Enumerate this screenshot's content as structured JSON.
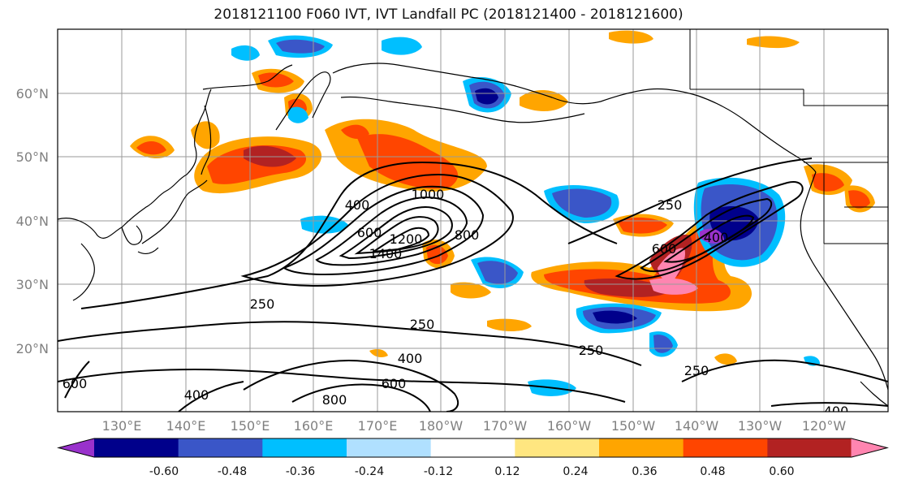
{
  "title": "2018121100 F060 IVT, IVT Landfall PC (2018121400 - 2018121600)",
  "lat_labels": [
    "60°N",
    "50°N",
    "40°N",
    "30°N",
    "20°N"
  ],
  "lon_labels": [
    "130°E",
    "140°E",
    "150°E",
    "160°E",
    "170°E",
    "180°W",
    "170°W",
    "160°W",
    "150°W",
    "140°W",
    "130°W",
    "120°W"
  ],
  "contour_labels": [
    "250",
    "400",
    "600",
    "800",
    "1000",
    "1200",
    "1400",
    "250",
    "250",
    "400",
    "600",
    "800",
    "600",
    "400",
    "250",
    "600",
    "400",
    "250",
    "400"
  ],
  "colorbar": {
    "tick_labels": [
      "-0.60",
      "-0.48",
      "-0.36",
      "-0.24",
      "-0.12",
      "0.12",
      "0.24",
      "0.36",
      "0.48",
      "0.60"
    ],
    "colors": [
      "#9932cc",
      "#00008b",
      "#3a56c8",
      "#00bfff",
      "#b0e0ff",
      "#ffffff",
      "#ffe680",
      "#ffa500",
      "#ff4500",
      "#b22222",
      "#ff85b0"
    ]
  },
  "colors": {
    "contour": "#000000",
    "grid": "#9a9a9a",
    "coast": "#000000"
  }
}
